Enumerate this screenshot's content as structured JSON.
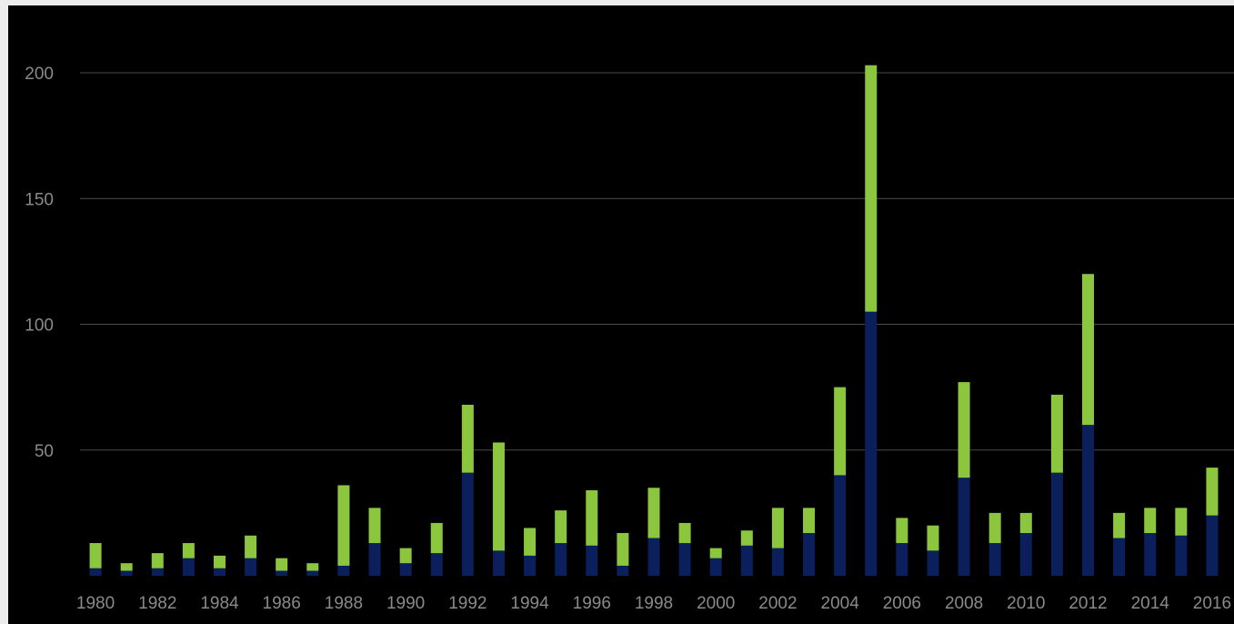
{
  "chart_data": {
    "type": "bar",
    "stacked": true,
    "title": "",
    "xlabel": "",
    "ylabel": "",
    "ylim": [
      0,
      200
    ],
    "yticks": [
      "50",
      "100",
      "150",
      "200"
    ],
    "grid": "horizontal",
    "legend": "none",
    "categories": [
      "1980",
      "1981",
      "1982",
      "1983",
      "1984",
      "1985",
      "1986",
      "1987",
      "1988",
      "1989",
      "1990",
      "1991",
      "1992",
      "1993",
      "1994",
      "1995",
      "1996",
      "1997",
      "1998",
      "1999",
      "2000",
      "2001",
      "2002",
      "2003",
      "2004",
      "2005",
      "2006",
      "2007",
      "2008",
      "2009",
      "2010",
      "2011",
      "2012",
      "2013",
      "2014",
      "2015",
      "2016"
    ],
    "xtick_labels": [
      "1980",
      "1982",
      "1984",
      "1986",
      "1988",
      "1990",
      "1992",
      "1994",
      "1996",
      "1998",
      "2000",
      "2002",
      "2004",
      "2006",
      "2008",
      "2010",
      "2012",
      "2014",
      "2016"
    ],
    "series": [
      {
        "color": "#0b1f5c",
        "values": [
          3,
          2,
          3,
          7,
          3,
          7,
          2,
          2,
          4,
          13,
          5,
          9,
          41,
          10,
          8,
          13,
          12,
          4,
          15,
          13,
          7,
          12,
          11,
          17,
          40,
          105,
          13,
          10,
          39,
          13,
          17,
          41,
          60,
          15,
          17,
          16,
          24
        ]
      },
      {
        "color": "#8cc63f",
        "values": [
          10,
          3,
          6,
          6,
          5,
          9,
          5,
          3,
          32,
          14,
          6,
          12,
          27,
          43,
          11,
          13,
          22,
          13,
          20,
          8,
          4,
          6,
          16,
          10,
          35,
          98,
          10,
          10,
          38,
          12,
          8,
          31,
          60,
          10,
          10,
          11,
          19
        ]
      }
    ]
  },
  "colors": {
    "background": "#000000",
    "grid": "#4a4a4a",
    "tick_text": "#8a8a8a"
  }
}
